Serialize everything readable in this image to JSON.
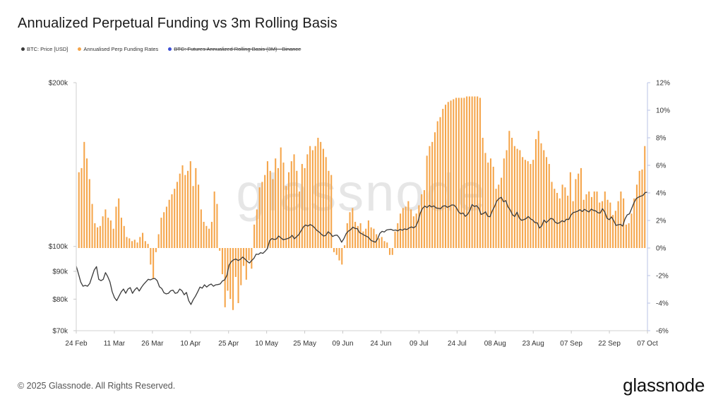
{
  "header": {
    "title": "Annualized Perpetual Funding vs 3m Rolling Basis"
  },
  "legend": [
    {
      "label": "BTC: Price [USD]",
      "color": "#3a3a3a",
      "hidden": false
    },
    {
      "label": "Annualised Perp Funding Rates",
      "color": "#f5a54a",
      "hidden": false
    },
    {
      "label": "BTC: Futures Annualized Rolling Basis (3M) - Binance",
      "color": "#3d4fd6",
      "hidden": true
    }
  ],
  "watermark": "glassnode",
  "footer": {
    "copyright": "© 2025 Glassnode. All Rights Reserved.",
    "brand": "glassnode"
  },
  "chart_data": {
    "type": "bar",
    "title": "Annualized Perpetual Funding vs 3m Rolling Basis",
    "x_start": "2025-02-24",
    "x_end": "2025-10-07",
    "x_ticks": [
      "24 Feb",
      "11 Mar",
      "26 Mar",
      "10 Apr",
      "25 Apr",
      "10 May",
      "25 May",
      "09 Jun",
      "24 Jun",
      "09 Jul",
      "24 Jul",
      "08 Aug",
      "23 Aug",
      "07 Sep",
      "22 Sep",
      "07 Oct"
    ],
    "y_left": {
      "scale": "log",
      "range": [
        70000,
        200000
      ],
      "ticks": [
        70000,
        80000,
        90000,
        100000,
        200000
      ],
      "tick_labels": [
        "$70k",
        "$80k",
        "$90k",
        "$100k",
        "$200k"
      ]
    },
    "y_right": {
      "range": [
        -6,
        12
      ],
      "ticks": [
        -6,
        -4,
        -2,
        0,
        2,
        4,
        6,
        8,
        10,
        12
      ],
      "tick_labels": [
        "-6%",
        "-4%",
        "-2%",
        "0%",
        "2%",
        "4%",
        "6%",
        "8%",
        "10%",
        "12%"
      ]
    },
    "series": [
      {
        "name": "Annualised Perp Funding Rates",
        "kind": "bar",
        "color": "#f5a54a",
        "axis": "right",
        "unit": "%",
        "values": [
          5.5,
          5.8,
          7.7,
          6.5,
          5.0,
          3.2,
          1.8,
          1.5,
          1.6,
          2.3,
          2.8,
          2.2,
          2.0,
          1.4,
          3.0,
          3.6,
          2.2,
          1.6,
          0.8,
          0.7,
          0.5,
          0.6,
          0.4,
          0.8,
          1.1,
          0.5,
          0.3,
          -1.2,
          -2.2,
          -0.3,
          1.0,
          2.2,
          2.6,
          3.0,
          3.5,
          3.9,
          4.3,
          4.8,
          5.4,
          6.0,
          5.3,
          5.6,
          6.3,
          4.5,
          5.8,
          4.6,
          2.8,
          1.9,
          1.6,
          1.4,
          1.9,
          4.1,
          3.2,
          -0.2,
          -1.9,
          -4.3,
          -3.1,
          -3.7,
          -4.5,
          -2.1,
          -4.0,
          -2.7,
          -1.3,
          -2.3,
          -0.9,
          -1.5,
          1.7,
          2.8,
          4.4,
          4.8,
          5.3,
          6.3,
          5.6,
          5.0,
          6.5,
          5.8,
          7.3,
          6.2,
          4.5,
          5.5,
          6.3,
          6.8,
          5.6,
          4.1,
          6.1,
          5.8,
          6.8,
          7.4,
          7.1,
          7.4,
          8.0,
          7.7,
          7.2,
          6.6,
          5.6,
          5.3,
          -0.3,
          -0.5,
          -0.9,
          -1.2,
          0.2,
          1.8,
          2.6,
          2.9,
          1.9,
          1.6,
          1.8,
          1.2,
          1.4,
          2.0,
          1.5,
          1.4,
          1.0,
          0.7,
          0.8,
          0.5,
          0.4,
          -0.5,
          -0.5,
          1.2,
          1.8,
          2.5,
          2.9,
          3.0,
          3.4,
          2.8,
          2.3,
          2.5,
          3.1,
          3.9,
          4.2,
          6.7,
          7.4,
          7.7,
          8.4,
          9.2,
          9.5,
          10.1,
          10.4,
          10.6,
          10.7,
          10.8,
          10.9,
          10.9,
          10.9,
          10.9,
          11.0,
          11.0,
          11.0,
          11.0,
          11.0,
          10.9,
          8.0,
          6.9,
          6.2,
          6.5,
          5.9,
          4.3,
          4.6,
          5.1,
          6.5,
          7.1,
          8.5,
          8.0,
          7.4,
          7.2,
          7.1,
          6.6,
          6.4,
          6.3,
          6.1,
          6.4,
          7.9,
          8.5,
          7.6,
          7.1,
          6.6,
          6.1,
          4.8,
          4.3,
          4.0,
          3.6,
          4.6,
          4.4,
          3.8,
          5.5,
          3.4,
          5.0,
          5.4,
          5.8,
          3.5,
          3.9,
          4.1,
          3.7,
          4.1,
          4.1,
          3.3,
          3.4,
          4.1,
          3.5,
          3.3,
          2.4,
          2.7,
          3.4,
          4.1,
          3.6,
          1.7,
          1.8,
          2.5,
          3.6,
          4.6,
          5.6,
          5.7,
          7.4
        ]
      },
      {
        "name": "BTC: Price [USD]",
        "kind": "line",
        "color": "#3a3a3a",
        "axis": "left",
        "unit": "USD",
        "values": [
          92000,
          89000,
          86000,
          84500,
          84800,
          84500,
          85500,
          88000,
          90500,
          91800,
          87000,
          86500,
          87000,
          89500,
          88000,
          86000,
          82500,
          80500,
          79500,
          81000,
          82500,
          83500,
          82000,
          83500,
          84000,
          82000,
          83200,
          84000,
          82800,
          84100,
          85200,
          86100,
          87000,
          86800,
          87200,
          87300,
          86500,
          84300,
          83700,
          82200,
          81800,
          82000,
          82900,
          83100,
          82000,
          82200,
          83500,
          82900,
          81500,
          82300,
          79500,
          78200,
          79800,
          81000,
          82500,
          84200,
          83800,
          85000,
          84200,
          84900,
          85300,
          84500,
          85000,
          85100,
          85300,
          86400,
          86800,
          88500,
          92500,
          93800,
          94500,
          94800,
          94200,
          94700,
          95600,
          94800,
          93900,
          93200,
          94200,
          95100,
          96800,
          96700,
          97400,
          97100,
          98000,
          99100,
          102500,
          103400,
          103000,
          103200,
          104500,
          103700,
          102900,
          103100,
          103400,
          103800,
          104800,
          103300,
          104200,
          105200,
          106900,
          108600,
          109500,
          109000,
          109700,
          109200,
          108200,
          107000,
          106300,
          105300,
          104500,
          104800,
          106400,
          105600,
          104300,
          104800,
          104900,
          103700,
          101800,
          103300,
          105500,
          106700,
          107300,
          108500,
          107900,
          107800,
          106000,
          105500,
          104900,
          104400,
          103900,
          102600,
          102200,
          101800,
          103200,
          105700,
          106600,
          106300,
          107200,
          107400,
          107500,
          107000,
          107200,
          106800,
          107500,
          107100,
          107700,
          107400,
          108100,
          108600,
          108200,
          108900,
          111300,
          115200,
          117500,
          118600,
          117900,
          119000,
          118200,
          118700,
          117700,
          117500,
          117300,
          118600,
          118800,
          118000,
          118500,
          119200,
          119100,
          117900,
          115800,
          114800,
          115200,
          113600,
          114500,
          116400,
          119400,
          118400,
          118800,
          117600,
          114500,
          114900,
          115800,
          113600,
          113400,
          116300,
          118400,
          121200,
          122500,
          123100,
          120800,
          121400,
          118200,
          116700,
          114300,
          113500,
          115600,
          112800,
          111700,
          112000,
          112500,
          113500,
          112400,
          111800,
          110600,
          110500,
          108100,
          109100,
          111800,
          110600,
          111600,
          112600,
          112300,
          110800,
          110200,
          110600,
          111500,
          111000,
          112200,
          112100,
          114200,
          115400,
          115700,
          116100,
          116800,
          115900,
          117000,
          116300,
          115700,
          117100,
          116500,
          116200,
          115300,
          115200,
          117300,
          115700,
          112700,
          112000,
          113300,
          111500,
          109300,
          109600,
          109800,
          109000,
          112300,
          114300,
          114800,
          117500,
          120300,
          122400,
          123200,
          123700,
          124100,
          125600,
          125800
        ]
      },
      {
        "name": "BTC: Futures Annualized Rolling Basis (3M) - Binance",
        "kind": "line",
        "color": "#3d4fd6",
        "axis": "right",
        "hidden": true,
        "values": []
      }
    ],
    "grid": false,
    "legend_position": "top-left"
  }
}
